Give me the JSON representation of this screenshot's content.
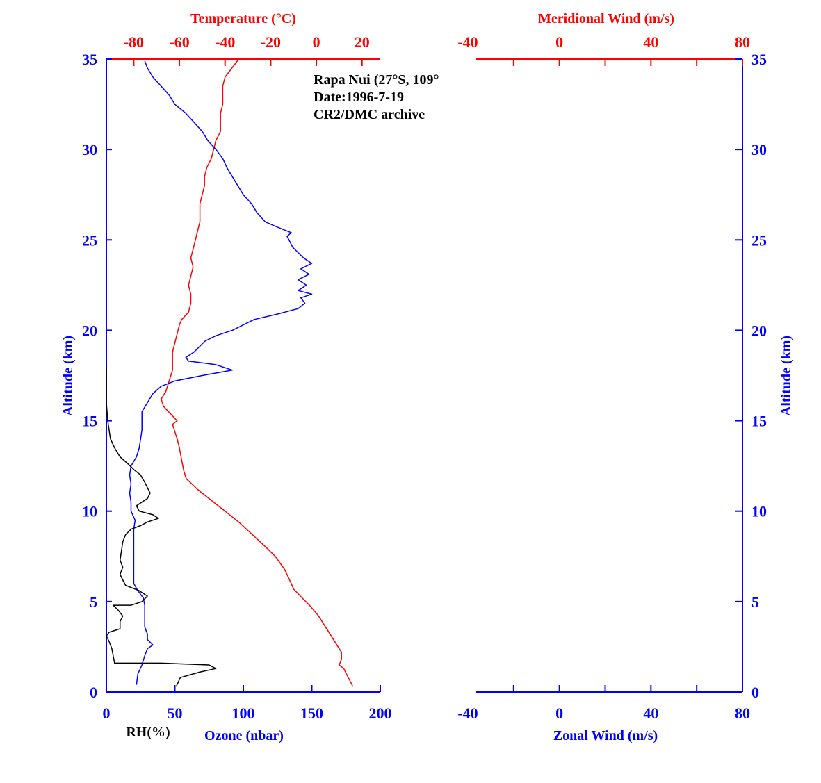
{
  "chart_data": [
    {
      "type": "line",
      "annotations": [
        "Rapa Nui (27°S, 109°",
        "Date:1996-7-19",
        "CR2/DMC archive"
      ],
      "ylabel": "Altitude (km)",
      "ylim": [
        0,
        35
      ],
      "yticks": [
        0,
        5,
        10,
        15,
        20,
        25,
        30,
        35
      ],
      "bottom_axis": {
        "ticks": [
          0,
          50,
          100,
          150,
          200
        ],
        "xlim": [
          0,
          200
        ],
        "labels": [
          "RH(%)",
          "Ozone (nbar)"
        ]
      },
      "top_axis": {
        "label": "Temperature (°C)",
        "ticks": [
          -80,
          -60,
          -40,
          -20,
          0,
          20
        ],
        "xlim": [
          -92,
          28
        ]
      },
      "colors": {
        "temperature": "#ff0000",
        "ozone": "#0000ff",
        "rh": "#000000"
      },
      "series": [
        {
          "key": "temperature",
          "axis": "top",
          "points": [
            [
              16,
              0.3
            ],
            [
              14,
              0.8
            ],
            [
              12,
              1.3
            ],
            [
              10,
              1.5
            ],
            [
              11,
              1.8
            ],
            [
              11,
              2.2
            ],
            [
              9,
              2.6
            ],
            [
              6,
              3.2
            ],
            [
              4,
              3.6
            ],
            [
              1,
              4.2
            ],
            [
              -3,
              4.8
            ],
            [
              -7,
              5.3
            ],
            [
              -10,
              5.7
            ],
            [
              -11,
              6.0
            ],
            [
              -14,
              6.8
            ],
            [
              -18,
              7.5
            ],
            [
              -22,
              8.0
            ],
            [
              -28,
              8.7
            ],
            [
              -34,
              9.4
            ],
            [
              -40,
              10.0
            ],
            [
              -46,
              10.6
            ],
            [
              -52,
              11.2
            ],
            [
              -57,
              11.8
            ],
            [
              -58,
              12.2
            ],
            [
              -59,
              12.8
            ],
            [
              -60,
              13.5
            ],
            [
              -61,
              14.0
            ],
            [
              -62,
              14.4
            ],
            [
              -63,
              14.8
            ],
            [
              -61,
              15.0
            ],
            [
              -64,
              15.4
            ],
            [
              -67,
              15.8
            ],
            [
              -68,
              16.2
            ],
            [
              -66,
              16.6
            ],
            [
              -65,
              17.0
            ],
            [
              -64,
              17.4
            ],
            [
              -63,
              17.8
            ],
            [
              -63,
              18.2
            ],
            [
              -63,
              18.8
            ],
            [
              -62,
              19.3
            ],
            [
              -61,
              19.8
            ],
            [
              -60,
              20.3
            ],
            [
              -59,
              20.6
            ],
            [
              -56,
              21.0
            ],
            [
              -55,
              21.5
            ],
            [
              -55,
              22.0
            ],
            [
              -56,
              22.5
            ],
            [
              -55,
              23.0
            ],
            [
              -54,
              23.5
            ],
            [
              -55,
              24.0
            ],
            [
              -54,
              24.5
            ],
            [
              -53,
              25.0
            ],
            [
              -52,
              25.5
            ],
            [
              -51,
              26.0
            ],
            [
              -51,
              26.5
            ],
            [
              -51,
              27.0
            ],
            [
              -50,
              27.5
            ],
            [
              -49,
              28.0
            ],
            [
              -49,
              28.5
            ],
            [
              -48,
              29.0
            ],
            [
              -46,
              29.5
            ],
            [
              -45,
              30.0
            ],
            [
              -44,
              30.5
            ],
            [
              -42,
              31.0
            ],
            [
              -42,
              31.5
            ],
            [
              -42,
              32.0
            ],
            [
              -41,
              32.5
            ],
            [
              -41,
              33.0
            ],
            [
              -41,
              33.5
            ],
            [
              -40,
              34.0
            ],
            [
              -37,
              34.5
            ],
            [
              -34,
              35.0
            ]
          ]
        },
        {
          "key": "ozone",
          "axis": "bottom",
          "points": [
            [
              22,
              0.4
            ],
            [
              23,
              1.0
            ],
            [
              26,
              1.5
            ],
            [
              28,
              2.0
            ],
            [
              30,
              2.4
            ],
            [
              34,
              2.6
            ],
            [
              30,
              2.9
            ],
            [
              30,
              3.2
            ],
            [
              28,
              3.6
            ],
            [
              28,
              4.0
            ],
            [
              28,
              4.4
            ],
            [
              28,
              4.8
            ],
            [
              27,
              5.2
            ],
            [
              23,
              5.6
            ],
            [
              20,
              6.0
            ],
            [
              20,
              6.5
            ],
            [
              20,
              7.0
            ],
            [
              20,
              7.5
            ],
            [
              20,
              8.0
            ],
            [
              20,
              8.5
            ],
            [
              20,
              9.0
            ],
            [
              21,
              9.5
            ],
            [
              18,
              10.0
            ],
            [
              18,
              10.5
            ],
            [
              17,
              11.0
            ],
            [
              18,
              11.5
            ],
            [
              17,
              12.0
            ],
            [
              18,
              12.5
            ],
            [
              22,
              13.0
            ],
            [
              24,
              13.5
            ],
            [
              25,
              14.0
            ],
            [
              26,
              14.5
            ],
            [
              26,
              15.0
            ],
            [
              26,
              15.5
            ],
            [
              30,
              16.0
            ],
            [
              34,
              16.5
            ],
            [
              40,
              16.9
            ],
            [
              50,
              17.2
            ],
            [
              70,
              17.5
            ],
            [
              92,
              17.8
            ],
            [
              80,
              18.1
            ],
            [
              70,
              18.2
            ],
            [
              60,
              18.3
            ],
            [
              58,
              18.5
            ],
            [
              64,
              18.8
            ],
            [
              68,
              19.1
            ],
            [
              72,
              19.4
            ],
            [
              80,
              19.7
            ],
            [
              92,
              20.0
            ],
            [
              100,
              20.3
            ],
            [
              108,
              20.6
            ],
            [
              125,
              20.9
            ],
            [
              140,
              21.2
            ],
            [
              145,
              21.5
            ],
            [
              142,
              21.8
            ],
            [
              150,
              22.0
            ],
            [
              140,
              22.2
            ],
            [
              146,
              22.5
            ],
            [
              140,
              22.8
            ],
            [
              148,
              23.1
            ],
            [
              142,
              23.4
            ],
            [
              150,
              23.7
            ],
            [
              144,
              24.0
            ],
            [
              140,
              24.3
            ],
            [
              136,
              24.6
            ],
            [
              134,
              24.9
            ],
            [
              132,
              25.2
            ],
            [
              135,
              25.4
            ],
            [
              125,
              25.7
            ],
            [
              116,
              26.0
            ],
            [
              110,
              26.5
            ],
            [
              106,
              27.0
            ],
            [
              100,
              27.5
            ],
            [
              96,
              28.0
            ],
            [
              92,
              28.5
            ],
            [
              88,
              29.0
            ],
            [
              85,
              29.5
            ],
            [
              80,
              30.0
            ],
            [
              74,
              30.5
            ],
            [
              70,
              31.0
            ],
            [
              64,
              31.5
            ],
            [
              58,
              32.0
            ],
            [
              50,
              32.5
            ],
            [
              46,
              33.0
            ],
            [
              40,
              33.5
            ],
            [
              34,
              34.0
            ],
            [
              30,
              34.5
            ],
            [
              28,
              34.9
            ]
          ]
        },
        {
          "key": "rh",
          "axis": "bottom",
          "points": [
            [
              51,
              0.3
            ],
            [
              54,
              0.8
            ],
            [
              68,
              1.1
            ],
            [
              80,
              1.3
            ],
            [
              75,
              1.5
            ],
            [
              40,
              1.6
            ],
            [
              6,
              1.6
            ],
            [
              5,
              2.0
            ],
            [
              4,
              2.4
            ],
            [
              2,
              2.8
            ],
            [
              0,
              3.1
            ],
            [
              2,
              3.3
            ],
            [
              6,
              3.4
            ],
            [
              10,
              3.5
            ],
            [
              10,
              3.9
            ],
            [
              12,
              4.2
            ],
            [
              9,
              4.5
            ],
            [
              5,
              4.8
            ],
            [
              18,
              4.8
            ],
            [
              26,
              5.0
            ],
            [
              30,
              5.3
            ],
            [
              24,
              5.6
            ],
            [
              14,
              5.9
            ],
            [
              12,
              6.2
            ],
            [
              10,
              6.5
            ],
            [
              12,
              6.9
            ],
            [
              10,
              7.3
            ],
            [
              11,
              7.8
            ],
            [
              12,
              8.3
            ],
            [
              14,
              8.7
            ],
            [
              18,
              9.0
            ],
            [
              25,
              9.2
            ],
            [
              30,
              9.4
            ],
            [
              38,
              9.6
            ],
            [
              34,
              9.8
            ],
            [
              24,
              10.0
            ],
            [
              22,
              10.3
            ],
            [
              30,
              10.7
            ],
            [
              32,
              11.0
            ],
            [
              30,
              11.3
            ],
            [
              28,
              11.6
            ],
            [
              25,
              12.0
            ],
            [
              20,
              12.3
            ],
            [
              16,
              12.6
            ],
            [
              10,
              13.0
            ],
            [
              6,
              13.5
            ],
            [
              3,
              14.0
            ],
            [
              2,
              14.5
            ],
            [
              1,
              15.0
            ],
            [
              0,
              16.0
            ],
            [
              0,
              17.0
            ],
            [
              0,
              18.0
            ]
          ]
        }
      ]
    },
    {
      "type": "line",
      "xlabel": "Zonal Wind (m/s)",
      "ylabel": "Altitude (km)",
      "ylim": [
        0,
        35
      ],
      "yticks": [
        0,
        5,
        10,
        15,
        20,
        25,
        30,
        35
      ],
      "bottom_axis": {
        "ticks": [
          -40,
          0,
          40,
          80
        ],
        "xlim": [
          -40,
          80
        ]
      },
      "top_axis": {
        "label": "Meridional Wind (m/s)",
        "ticks": [
          -40,
          0,
          40,
          80
        ],
        "xlim": [
          -40,
          80
        ]
      },
      "series": []
    }
  ]
}
